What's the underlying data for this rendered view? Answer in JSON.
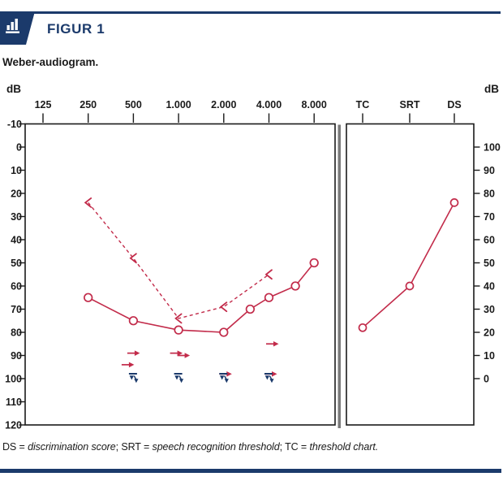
{
  "header": {
    "figure_label": "FIGUR 1",
    "icon": "bar-chart-icon"
  },
  "subtitle": "Weber-audiogram.",
  "caption": {
    "seg0": "DS = ",
    "seg1": "discrimination score",
    "seg2": "; SRT = ",
    "seg3": "speech recognition threshold",
    "seg4": "; TC = ",
    "seg5": "threshold chart."
  },
  "colors": {
    "navy": "#1b3a6b",
    "red": "#c22b4a",
    "ink": "#1a1a1a",
    "divider_gray": "#7a7a7a"
  },
  "chart_data": [
    {
      "id": "tone-audiogram",
      "type": "line",
      "title": "Weber-audiogram.",
      "x_ticks": [
        [
          125,
          "125"
        ],
        [
          250,
          "250"
        ],
        [
          500,
          "500"
        ],
        [
          1000,
          "1.000"
        ],
        [
          2000,
          "2.000"
        ],
        [
          4000,
          "4.000"
        ],
        [
          8000,
          "8.000"
        ]
      ],
      "y_axis": {
        "label": "dB",
        "ticks": [
          -10,
          0,
          10,
          20,
          30,
          40,
          50,
          60,
          70,
          80,
          90,
          100,
          110,
          120
        ],
        "range": [
          -10,
          120
        ]
      },
      "grid": false,
      "series": [
        {
          "name": "air-conduction-threshold",
          "marker": "circle",
          "line": "solid",
          "points": [
            [
              250,
              65
            ],
            [
              500,
              75
            ],
            [
              1000,
              79
            ],
            [
              2000,
              80
            ],
            [
              3000,
              70
            ],
            [
              4000,
              65
            ],
            [
              6000,
              60
            ],
            [
              8000,
              50
            ]
          ]
        },
        {
          "name": "bone-conduction-threshold",
          "marker": "chevron-left",
          "line": "dashed",
          "points": [
            [
              250,
              24
            ],
            [
              500,
              48
            ],
            [
              1000,
              74
            ],
            [
              2000,
              69
            ],
            [
              4000,
              55
            ]
          ]
        }
      ],
      "no_response_red_arrows": [
        {
          "f": 500,
          "db": 89,
          "dx": 0
        },
        {
          "f": 500,
          "db": 94,
          "dx": -7
        },
        {
          "f": 1000,
          "db": 89,
          "dx": -3
        },
        {
          "f": 1000,
          "db": 90,
          "dx": 6
        },
        {
          "f": 4000,
          "db": 85,
          "dx": 4
        },
        {
          "f": 2000,
          "db": 98,
          "dx": 2
        },
        {
          "f": 4000,
          "db": 98,
          "dx": 2
        }
      ],
      "no_response_blue_markers": [
        {
          "f": 500,
          "db": 100
        },
        {
          "f": 1000,
          "db": 100
        },
        {
          "f": 2000,
          "db": 100
        },
        {
          "f": 4000,
          "db": 100
        }
      ]
    },
    {
      "id": "speech-audiometry-panel",
      "type": "line",
      "categories": [
        "TC",
        "SRT",
        "DS"
      ],
      "values": [
        22,
        40,
        76
      ],
      "y_axis": {
        "label": "dB",
        "ticks": [
          100,
          90,
          80,
          70,
          60,
          50,
          40,
          30,
          20,
          10,
          0
        ],
        "range": [
          0,
          100
        ]
      },
      "marker": "circle"
    }
  ]
}
